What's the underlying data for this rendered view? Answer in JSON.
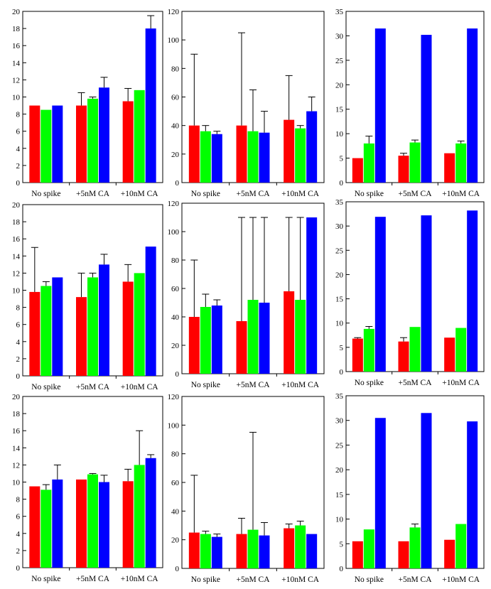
{
  "colors": {
    "series_1": "#ff0000",
    "series_2": "#00ff00",
    "series_3": "#0000ff",
    "axis": "#000000",
    "frame": "#000000"
  },
  "chart_data": [
    {
      "type": "bar",
      "row": 1,
      "col": 1,
      "categories": [
        "No spike",
        "+5nM CA",
        "+10nM CA"
      ],
      "yticks": [
        0,
        2,
        4,
        6,
        8,
        10,
        12,
        14,
        16,
        18,
        20
      ],
      "ylim": [
        0,
        20
      ],
      "series": [
        {
          "values": [
            9.0,
            9.0,
            9.5
          ],
          "err": [
            null,
            10.5,
            11.0
          ]
        },
        {
          "values": [
            8.5,
            9.8,
            10.8
          ],
          "err": [
            null,
            10.0,
            null
          ]
        },
        {
          "values": [
            9.0,
            11.1,
            18.0
          ],
          "err": [
            null,
            12.3,
            19.5
          ]
        }
      ]
    },
    {
      "type": "bar",
      "row": 1,
      "col": 2,
      "categories": [
        "No spike",
        "+5nM CA",
        "+10nM CA"
      ],
      "yticks": [
        0,
        20,
        40,
        60,
        80,
        100,
        120
      ],
      "ylim": [
        0,
        120
      ],
      "series": [
        {
          "values": [
            40,
            40,
            44
          ],
          "err": [
            90,
            105,
            75
          ]
        },
        {
          "values": [
            36,
            36,
            38
          ],
          "err": [
            40,
            65,
            40
          ]
        },
        {
          "values": [
            34,
            35,
            50
          ],
          "err": [
            36,
            50,
            60
          ]
        }
      ]
    },
    {
      "type": "bar",
      "row": 1,
      "col": 3,
      "categories": [
        "No spike",
        "+5nM CA",
        "+10nM CA"
      ],
      "yticks": [
        0,
        5,
        10,
        15,
        20,
        25,
        30,
        35
      ],
      "ylim": [
        0,
        35
      ],
      "series": [
        {
          "values": [
            5.0,
            5.5,
            6.0
          ],
          "err": [
            null,
            6.0,
            null
          ]
        },
        {
          "values": [
            8.0,
            8.2,
            8.0
          ],
          "err": [
            9.5,
            8.7,
            8.5
          ]
        },
        {
          "values": [
            31.5,
            30.2,
            31.5
          ],
          "err": [
            null,
            null,
            null
          ]
        }
      ]
    },
    {
      "type": "bar",
      "row": 2,
      "col": 1,
      "categories": [
        "No spike",
        "+5nM CA",
        "+10nM CA"
      ],
      "yticks": [
        0,
        2,
        4,
        6,
        8,
        10,
        12,
        14,
        16,
        18,
        20
      ],
      "ylim": [
        0,
        20
      ],
      "series": [
        {
          "values": [
            9.8,
            9.2,
            11.0
          ],
          "err": [
            15.0,
            12.0,
            13.0
          ]
        },
        {
          "values": [
            10.5,
            11.5,
            12.0
          ],
          "err": [
            11.0,
            12.0,
            null
          ]
        },
        {
          "values": [
            11.5,
            13.0,
            15.1
          ],
          "err": [
            null,
            14.2,
            null
          ]
        }
      ]
    },
    {
      "type": "bar",
      "row": 2,
      "col": 2,
      "categories": [
        "No spike",
        "+5nM CA",
        "+10nM CA"
      ],
      "yticks": [
        0,
        20,
        40,
        60,
        80,
        100,
        120
      ],
      "ylim": [
        0,
        120
      ],
      "series": [
        {
          "values": [
            40,
            37,
            58
          ],
          "err": [
            80,
            110,
            110
          ]
        },
        {
          "values": [
            47,
            52,
            52
          ],
          "err": [
            56,
            110,
            110
          ]
        },
        {
          "values": [
            48,
            50,
            110
          ],
          "err": [
            52,
            110,
            null
          ]
        }
      ]
    },
    {
      "type": "bar",
      "row": 2,
      "col": 3,
      "categories": [
        "No spike",
        "+5nM CA",
        "+10nM CA"
      ],
      "yticks": [
        0,
        5,
        10,
        15,
        20,
        25,
        30,
        35
      ],
      "ylim": [
        0,
        35
      ],
      "series": [
        {
          "values": [
            6.8,
            6.2,
            7.0
          ],
          "err": [
            7.0,
            7.0,
            null
          ]
        },
        {
          "values": [
            8.8,
            9.2,
            9.0
          ],
          "err": [
            9.3,
            null,
            null
          ]
        },
        {
          "values": [
            31.9,
            32.2,
            33.2
          ],
          "err": [
            null,
            null,
            null
          ]
        }
      ]
    },
    {
      "type": "bar",
      "row": 3,
      "col": 1,
      "categories": [
        "No spike",
        "+5nM CA",
        "+10nM CA"
      ],
      "yticks": [
        0,
        2,
        4,
        6,
        8,
        10,
        12,
        14,
        16,
        18,
        20
      ],
      "ylim": [
        0,
        20
      ],
      "series": [
        {
          "values": [
            9.5,
            10.3,
            10.1
          ],
          "err": [
            null,
            null,
            11.5
          ]
        },
        {
          "values": [
            9.1,
            10.9,
            12.0
          ],
          "err": [
            9.7,
            11.0,
            16.0
          ]
        },
        {
          "values": [
            10.3,
            10.0,
            12.8
          ],
          "err": [
            12.0,
            10.8,
            13.2
          ]
        }
      ]
    },
    {
      "type": "bar",
      "row": 3,
      "col": 2,
      "categories": [
        "No spike",
        "+5nM CA",
        "+10nM CA"
      ],
      "yticks": [
        0,
        20,
        40,
        60,
        80,
        100,
        120
      ],
      "ylim": [
        0,
        120
      ],
      "series": [
        {
          "values": [
            25,
            24,
            28
          ],
          "err": [
            65,
            35,
            31
          ]
        },
        {
          "values": [
            24,
            27,
            30
          ],
          "err": [
            26,
            95,
            33
          ]
        },
        {
          "values": [
            22,
            23,
            24
          ],
          "err": [
            24,
            32,
            null
          ]
        }
      ]
    },
    {
      "type": "bar",
      "row": 3,
      "col": 3,
      "categories": [
        "No spike",
        "+5nM CA",
        "+10nM CA"
      ],
      "yticks": [
        0,
        5,
        10,
        15,
        20,
        25,
        30,
        35
      ],
      "ylim": [
        0,
        35
      ],
      "series": [
        {
          "values": [
            5.5,
            5.5,
            5.8
          ],
          "err": [
            null,
            null,
            null
          ]
        },
        {
          "values": [
            7.9,
            8.3,
            9.0
          ],
          "err": [
            null,
            9.0,
            null
          ]
        },
        {
          "values": [
            30.5,
            31.5,
            29.8
          ],
          "err": [
            null,
            null,
            null
          ]
        }
      ]
    }
  ]
}
